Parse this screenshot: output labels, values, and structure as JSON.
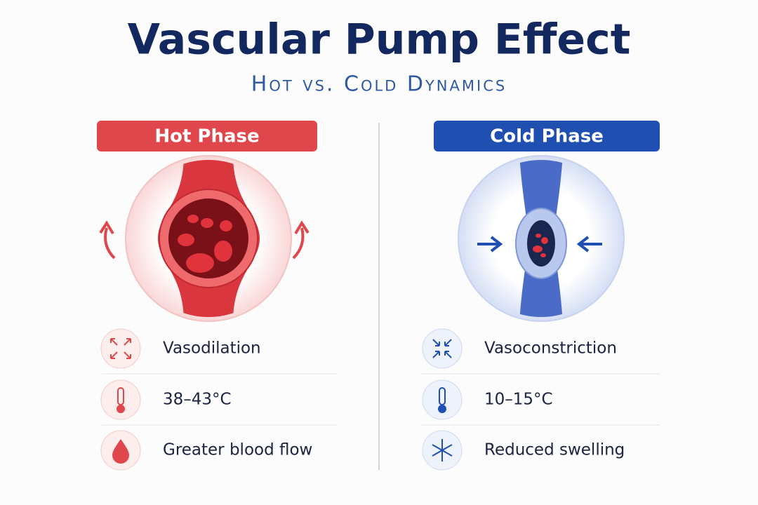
{
  "header": {
    "title": "Vascular Pump Effect",
    "subtitle": "Hot vs. Cold Dynamics"
  },
  "panels": [
    {
      "label": "Hot Phase",
      "items": [
        {
          "text": "Vasodilation"
        },
        {
          "text": "38–43°C"
        },
        {
          "text": "Greater blood flow"
        }
      ]
    },
    {
      "label": "Cold Phase",
      "items": [
        {
          "text": "Vasoconstriction"
        },
        {
          "text": "10–15°C"
        },
        {
          "text": "Reduced swelling"
        }
      ]
    }
  ]
}
